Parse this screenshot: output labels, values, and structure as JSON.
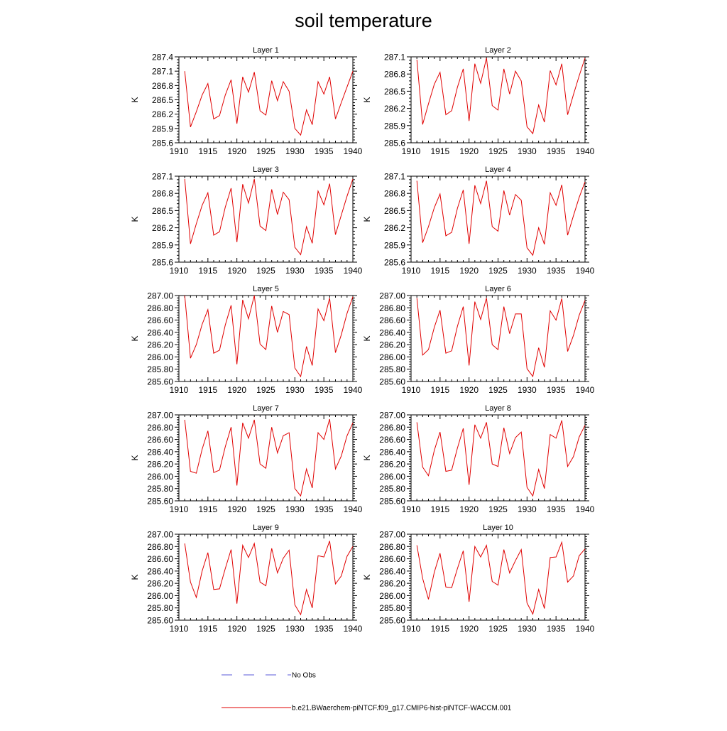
{
  "title": "soil temperature",
  "legend": {
    "obs_label": "No Obs",
    "model_label": "b.e21.BWaerchem-piNTCF.f09_g17.CMIP6-hist-piNTCF-WACCM.001",
    "obs_color": "#5a5ad8",
    "model_color": "#e00000"
  },
  "chart_data": [
    {
      "type": "line",
      "title": "Layer 1",
      "ylabel": "K",
      "xlim": [
        1910,
        1940
      ],
      "ylim": [
        285.6,
        287.4
      ],
      "xticks": [
        "1910",
        "1915",
        "1920",
        "1925",
        "1930",
        "1935",
        "1940"
      ],
      "yticks": [
        "285.6",
        "285.9",
        "286.2",
        "286.5",
        "286.8",
        "287.1",
        "287.4"
      ],
      "series": [
        {
          "x": [
            1911,
            1912,
            1913,
            1914,
            1915,
            1916,
            1917,
            1918,
            1919,
            1920,
            1921,
            1922,
            1923,
            1924,
            1925,
            1926,
            1927,
            1928,
            1929,
            1930,
            1931,
            1932,
            1933,
            1934,
            1935,
            1936,
            1937,
            1938,
            1939,
            1940
          ],
          "values": [
            287.1,
            285.93,
            286.25,
            286.6,
            286.84,
            286.1,
            286.17,
            286.6,
            286.92,
            286.0,
            286.98,
            286.66,
            287.08,
            286.27,
            286.18,
            286.9,
            286.48,
            286.88,
            286.68,
            285.9,
            285.76,
            286.29,
            285.98,
            286.88,
            286.62,
            286.98,
            286.1,
            286.44,
            286.77,
            287.1
          ]
        }
      ]
    },
    {
      "type": "line",
      "title": "Layer 2",
      "ylabel": "K",
      "xlim": [
        1910,
        1940
      ],
      "ylim": [
        285.6,
        287.1
      ],
      "xticks": [
        "1910",
        "1915",
        "1920",
        "1925",
        "1930",
        "1935",
        "1940"
      ],
      "yticks": [
        "285.6",
        "285.9",
        "286.2",
        "286.5",
        "286.8",
        "287.1"
      ],
      "series": [
        {
          "x": [
            1911,
            1912,
            1913,
            1914,
            1915,
            1916,
            1917,
            1918,
            1919,
            1920,
            1921,
            1922,
            1923,
            1924,
            1925,
            1926,
            1927,
            1928,
            1929,
            1930,
            1931,
            1932,
            1933,
            1934,
            1935,
            1936,
            1937,
            1938,
            1939,
            1940
          ],
          "values": [
            287.05,
            285.92,
            286.28,
            286.62,
            286.83,
            286.09,
            286.16,
            286.57,
            286.89,
            285.98,
            286.98,
            286.64,
            287.08,
            286.25,
            286.17,
            286.89,
            286.45,
            286.85,
            286.68,
            285.88,
            285.76,
            286.26,
            285.96,
            286.86,
            286.61,
            286.98,
            286.09,
            286.44,
            286.77,
            287.08
          ]
        }
      ]
    },
    {
      "type": "line",
      "title": "Layer 3",
      "ylabel": "K",
      "xlim": [
        1910,
        1940
      ],
      "ylim": [
        285.6,
        287.1
      ],
      "xticks": [
        "1910",
        "1915",
        "1920",
        "1925",
        "1930",
        "1935",
        "1940"
      ],
      "yticks": [
        "285.6",
        "285.9",
        "286.2",
        "286.5",
        "286.8",
        "287.1"
      ],
      "series": [
        {
          "x": [
            1911,
            1912,
            1913,
            1914,
            1915,
            1916,
            1917,
            1918,
            1919,
            1920,
            1921,
            1922,
            1923,
            1924,
            1925,
            1926,
            1927,
            1928,
            1929,
            1930,
            1931,
            1932,
            1933,
            1934,
            1935,
            1936,
            1937,
            1938,
            1939,
            1940
          ],
          "values": [
            287.05,
            285.92,
            286.27,
            286.59,
            286.81,
            286.07,
            286.13,
            286.56,
            286.89,
            285.95,
            286.96,
            286.63,
            287.05,
            286.23,
            286.15,
            286.87,
            286.43,
            286.82,
            286.69,
            285.86,
            285.73,
            286.22,
            285.93,
            286.84,
            286.6,
            286.97,
            286.08,
            286.42,
            286.75,
            287.05
          ]
        }
      ]
    },
    {
      "type": "line",
      "title": "Layer 4",
      "ylabel": "K",
      "xlim": [
        1910,
        1940
      ],
      "ylim": [
        285.6,
        287.1
      ],
      "xticks": [
        "1910",
        "1915",
        "1920",
        "1925",
        "1930",
        "1935",
        "1940"
      ],
      "yticks": [
        "285.6",
        "285.9",
        "286.2",
        "286.5",
        "286.8",
        "287.1"
      ],
      "series": [
        {
          "x": [
            1911,
            1912,
            1913,
            1914,
            1915,
            1916,
            1917,
            1918,
            1919,
            1920,
            1921,
            1922,
            1923,
            1924,
            1925,
            1926,
            1927,
            1928,
            1929,
            1930,
            1931,
            1932,
            1933,
            1934,
            1935,
            1936,
            1937,
            1938,
            1939,
            1940
          ],
          "values": [
            287.02,
            285.94,
            286.22,
            286.55,
            286.79,
            286.06,
            286.12,
            286.54,
            286.86,
            285.92,
            286.94,
            286.62,
            287.02,
            286.22,
            286.14,
            286.85,
            286.42,
            286.78,
            286.68,
            285.85,
            285.72,
            286.2,
            285.91,
            286.81,
            286.59,
            286.95,
            286.07,
            286.41,
            286.73,
            287.0
          ]
        }
      ]
    },
    {
      "type": "line",
      "title": "Layer 5",
      "ylabel": "K",
      "xlim": [
        1910,
        1940
      ],
      "ylim": [
        285.6,
        287.0
      ],
      "xticks": [
        "1910",
        "1915",
        "1920",
        "1925",
        "1930",
        "1935",
        "1940"
      ],
      "yticks": [
        "285.60",
        "285.80",
        "286.00",
        "286.20",
        "286.40",
        "286.60",
        "286.80",
        "287.00"
      ],
      "series": [
        {
          "x": [
            1911,
            1912,
            1913,
            1914,
            1915,
            1916,
            1917,
            1918,
            1919,
            1920,
            1921,
            1922,
            1923,
            1924,
            1925,
            1926,
            1927,
            1928,
            1929,
            1930,
            1931,
            1932,
            1933,
            1934,
            1935,
            1936,
            1937,
            1938,
            1939,
            1940
          ],
          "values": [
            287.0,
            285.98,
            286.2,
            286.53,
            286.77,
            286.06,
            286.11,
            286.52,
            286.84,
            285.88,
            286.93,
            286.62,
            287.0,
            286.21,
            286.12,
            286.83,
            286.4,
            286.74,
            286.69,
            285.82,
            285.68,
            286.17,
            285.86,
            286.78,
            286.59,
            286.96,
            286.07,
            286.36,
            286.71,
            286.98
          ]
        }
      ]
    },
    {
      "type": "line",
      "title": "Layer 6",
      "ylabel": "K",
      "xlim": [
        1910,
        1940
      ],
      "ylim": [
        285.6,
        287.0
      ],
      "xticks": [
        "1910",
        "1915",
        "1920",
        "1925",
        "1930",
        "1935",
        "1940"
      ],
      "yticks": [
        "285.60",
        "285.80",
        "286.00",
        "286.20",
        "286.40",
        "286.60",
        "286.80",
        "287.00"
      ],
      "series": [
        {
          "x": [
            1911,
            1912,
            1913,
            1914,
            1915,
            1916,
            1917,
            1918,
            1919,
            1920,
            1921,
            1922,
            1923,
            1924,
            1925,
            1926,
            1927,
            1928,
            1929,
            1930,
            1931,
            1932,
            1933,
            1934,
            1935,
            1936,
            1937,
            1938,
            1939,
            1940
          ],
          "values": [
            286.96,
            286.03,
            286.12,
            286.48,
            286.76,
            286.06,
            286.1,
            286.5,
            286.82,
            285.86,
            286.9,
            286.61,
            286.96,
            286.2,
            286.12,
            286.82,
            286.38,
            286.7,
            286.7,
            285.81,
            285.68,
            286.15,
            285.83,
            286.75,
            286.6,
            286.95,
            286.09,
            286.35,
            286.68,
            286.92
          ]
        }
      ]
    },
    {
      "type": "line",
      "title": "Layer 7",
      "ylabel": "K",
      "xlim": [
        1910,
        1940
      ],
      "ylim": [
        285.6,
        287.0
      ],
      "xticks": [
        "1910",
        "1915",
        "1920",
        "1925",
        "1930",
        "1935",
        "1940"
      ],
      "yticks": [
        "285.60",
        "285.80",
        "286.00",
        "286.20",
        "286.40",
        "286.60",
        "286.80",
        "287.00"
      ],
      "series": [
        {
          "x": [
            1911,
            1912,
            1913,
            1914,
            1915,
            1916,
            1917,
            1918,
            1919,
            1920,
            1921,
            1922,
            1923,
            1924,
            1925,
            1926,
            1927,
            1928,
            1929,
            1930,
            1931,
            1932,
            1933,
            1934,
            1935,
            1936,
            1937,
            1938,
            1939,
            1940
          ],
          "values": [
            286.92,
            286.08,
            286.05,
            286.44,
            286.74,
            286.06,
            286.1,
            286.48,
            286.8,
            285.85,
            286.87,
            286.62,
            286.92,
            286.2,
            286.13,
            286.8,
            286.38,
            286.66,
            286.71,
            285.8,
            285.68,
            286.12,
            285.81,
            286.71,
            286.6,
            286.93,
            286.12,
            286.33,
            286.66,
            286.87
          ]
        }
      ]
    },
    {
      "type": "line",
      "title": "Layer 8",
      "ylabel": "K",
      "xlim": [
        1910,
        1940
      ],
      "ylim": [
        285.6,
        287.0
      ],
      "xticks": [
        "1910",
        "1915",
        "1920",
        "1925",
        "1930",
        "1935",
        "1940"
      ],
      "yticks": [
        "285.60",
        "285.80",
        "286.00",
        "286.20",
        "286.40",
        "286.60",
        "286.80",
        "287.00"
      ],
      "series": [
        {
          "x": [
            1911,
            1912,
            1913,
            1914,
            1915,
            1916,
            1917,
            1918,
            1919,
            1920,
            1921,
            1922,
            1923,
            1924,
            1925,
            1926,
            1927,
            1928,
            1929,
            1930,
            1931,
            1932,
            1933,
            1934,
            1935,
            1936,
            1937,
            1938,
            1939,
            1940
          ],
          "values": [
            286.88,
            286.15,
            286.01,
            286.42,
            286.72,
            286.08,
            286.1,
            286.46,
            286.78,
            285.86,
            286.84,
            286.62,
            286.88,
            286.2,
            286.16,
            286.79,
            286.37,
            286.63,
            286.72,
            285.82,
            285.68,
            286.11,
            285.8,
            286.68,
            286.62,
            286.91,
            286.16,
            286.32,
            286.64,
            286.83
          ]
        }
      ]
    },
    {
      "type": "line",
      "title": "Layer 9",
      "ylabel": "K",
      "xlim": [
        1910,
        1940
      ],
      "ylim": [
        285.6,
        287.0
      ],
      "xticks": [
        "1910",
        "1915",
        "1920",
        "1925",
        "1930",
        "1935",
        "1940"
      ],
      "yticks": [
        "285.60",
        "285.80",
        "286.00",
        "286.20",
        "286.40",
        "286.60",
        "286.80",
        "287.00"
      ],
      "series": [
        {
          "x": [
            1911,
            1912,
            1913,
            1914,
            1915,
            1916,
            1917,
            1918,
            1919,
            1920,
            1921,
            1922,
            1923,
            1924,
            1925,
            1926,
            1927,
            1928,
            1929,
            1930,
            1931,
            1932,
            1933,
            1934,
            1935,
            1936,
            1937,
            1938,
            1939,
            1940
          ],
          "values": [
            286.85,
            286.22,
            285.97,
            286.4,
            286.7,
            286.1,
            286.11,
            286.44,
            286.75,
            285.87,
            286.82,
            286.62,
            286.85,
            286.22,
            286.16,
            286.77,
            286.37,
            286.61,
            286.74,
            285.85,
            285.69,
            286.1,
            285.8,
            286.65,
            286.63,
            286.89,
            286.19,
            286.32,
            286.64,
            286.8
          ]
        }
      ]
    },
    {
      "type": "line",
      "title": "Layer 10",
      "ylabel": "K",
      "xlim": [
        1910,
        1940
      ],
      "ylim": [
        285.6,
        287.0
      ],
      "xticks": [
        "1910",
        "1915",
        "1920",
        "1925",
        "1930",
        "1935",
        "1940"
      ],
      "yticks": [
        "285.60",
        "285.80",
        "286.00",
        "286.20",
        "286.40",
        "286.60",
        "286.80",
        "287.00"
      ],
      "series": [
        {
          "x": [
            1911,
            1912,
            1913,
            1914,
            1915,
            1916,
            1917,
            1918,
            1919,
            1920,
            1921,
            1922,
            1923,
            1924,
            1925,
            1926,
            1927,
            1928,
            1929,
            1930,
            1931,
            1932,
            1933,
            1934,
            1935,
            1936,
            1937,
            1938,
            1939,
            1940
          ],
          "values": [
            286.82,
            286.28,
            285.94,
            286.38,
            286.69,
            286.14,
            286.13,
            286.44,
            286.73,
            285.9,
            286.8,
            286.63,
            286.82,
            286.23,
            286.17,
            286.75,
            286.37,
            286.57,
            286.75,
            285.88,
            285.7,
            286.1,
            285.79,
            286.62,
            286.63,
            286.87,
            286.22,
            286.32,
            286.65,
            286.76
          ]
        }
      ]
    }
  ]
}
